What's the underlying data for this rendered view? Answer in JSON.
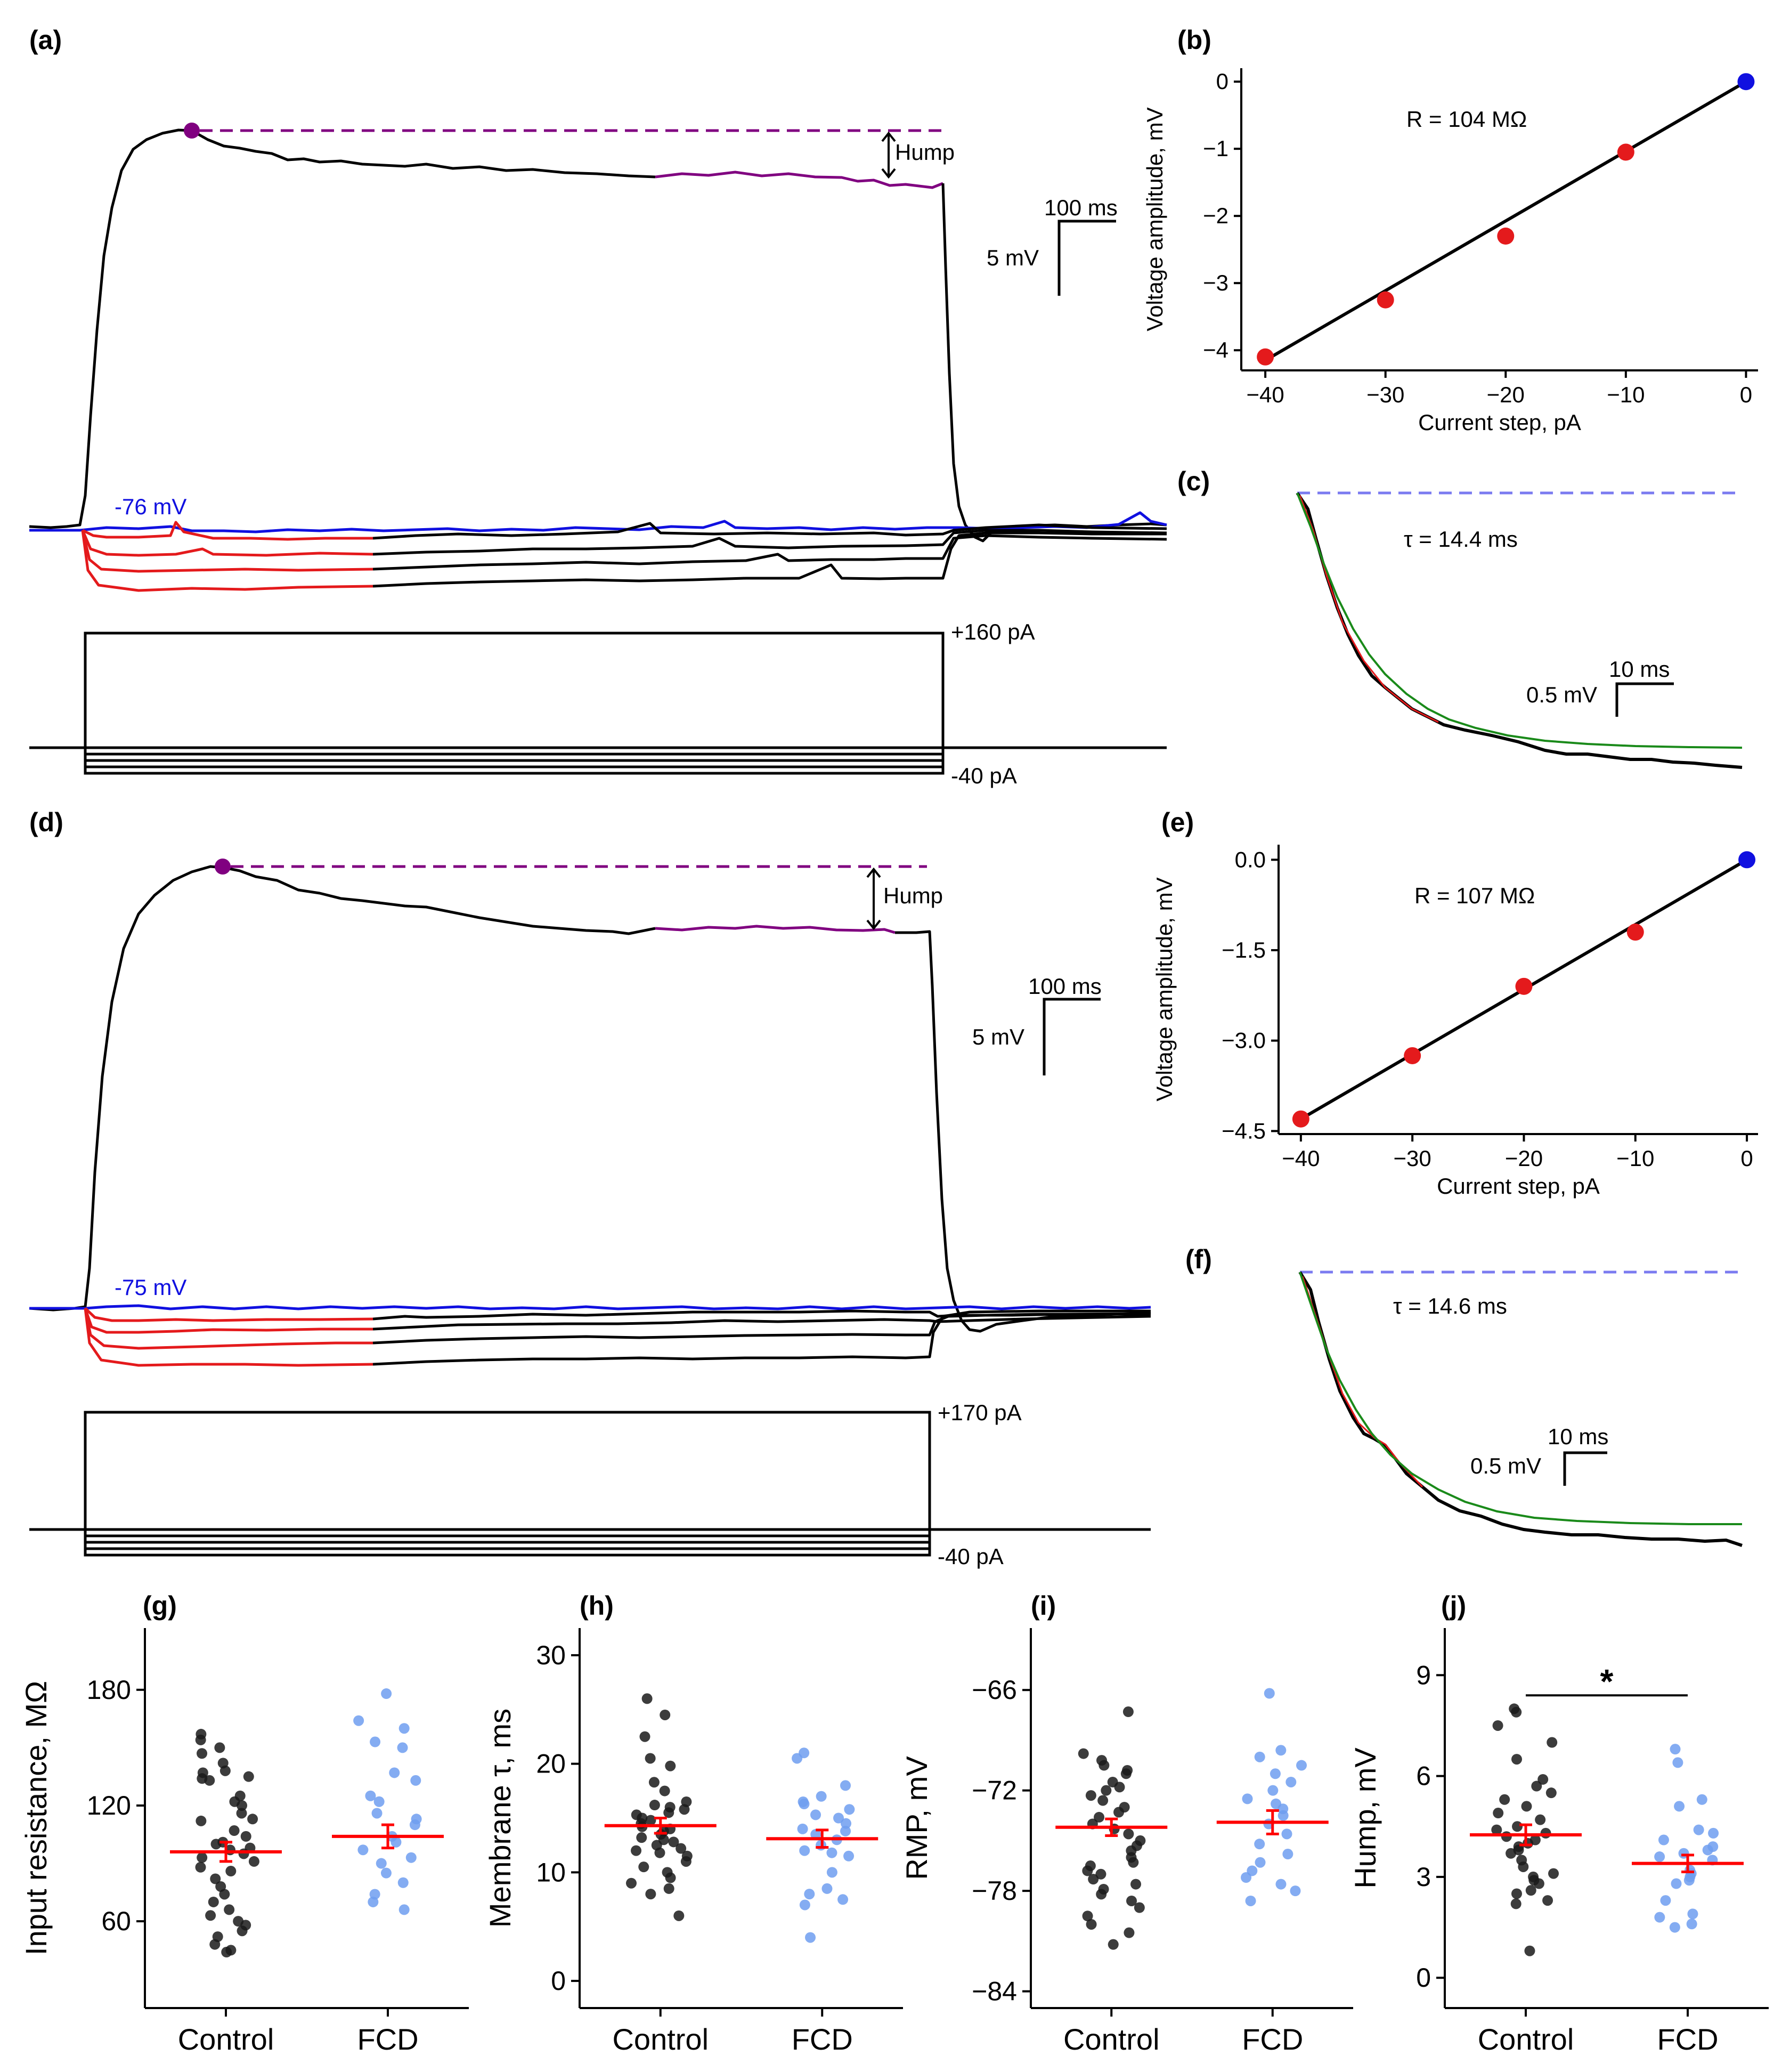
{
  "colors": {
    "trace": "#000000",
    "red_trace": "#e41a1c",
    "blue_trace": "#1010e0",
    "purple": "#800080",
    "fit": "#1a8a1a",
    "dashed_baseline": "#7b7bf0",
    "control_dot": "#1a1a1a",
    "fcd_dot": "#6f9df0",
    "mean_bar": "#ff0000"
  },
  "panel_labels": {
    "a": "(a)",
    "b": "(b)",
    "c": "(c)",
    "d": "(d)",
    "e": "(e)",
    "f": "(f)",
    "g": "(g)",
    "h": "(h)",
    "i": "(i)",
    "j": "(j)"
  },
  "chart_data": [
    {
      "id": "a",
      "type": "line",
      "title": "",
      "rmp_label": "-76 mV",
      "hump_label": "Hump",
      "scale_time": "100 ms",
      "scale_voltage": "5 mV",
      "step_top_label": "+160 pA",
      "step_bottom_label": "-40 pA",
      "current_steps_pA": [
        160,
        -10,
        -20,
        -30,
        -40
      ]
    },
    {
      "id": "b",
      "type": "scatter",
      "title": "R = 104 MΩ",
      "xlabel": "Current step, pA",
      "ylabel": "Voltage amplitude, mV",
      "xlim": [
        -42,
        1
      ],
      "ylim": [
        -4.3,
        0.2
      ],
      "xticks": [
        -40,
        -30,
        -20,
        -10,
        0
      ],
      "xtick_labels": [
        "−40",
        "−30",
        "−20",
        "−10",
        "0"
      ],
      "yticks": [
        0,
        -1,
        -2,
        -3,
        -4
      ],
      "ytick_labels": [
        "0",
        "−1",
        "−2",
        "−3",
        "−4"
      ],
      "x": [
        -40,
        -30,
        -20,
        -10,
        0
      ],
      "y": [
        -4.1,
        -3.25,
        -2.3,
        -1.05,
        0
      ],
      "fit_line": {
        "x": [
          -40,
          0
        ],
        "y": [
          -4.15,
          0
        ]
      }
    },
    {
      "id": "c",
      "type": "line",
      "tau_label": "τ = 14.4 ms",
      "scale_time": "10 ms",
      "scale_voltage": "0.5 mV"
    },
    {
      "id": "d",
      "type": "line",
      "rmp_label": "-75 mV",
      "hump_label": "Hump",
      "scale_time": "100 ms",
      "scale_voltage": "5 mV",
      "step_top_label": "+170 pA",
      "step_bottom_label": "-40 pA",
      "current_steps_pA": [
        170,
        -10,
        -20,
        -30,
        -40
      ]
    },
    {
      "id": "e",
      "type": "scatter",
      "title": "R = 107 MΩ",
      "xlabel": "Current step, pA",
      "ylabel": "Voltage amplitude, mV",
      "xlim": [
        -42,
        1
      ],
      "ylim": [
        -4.55,
        0.25
      ],
      "xticks": [
        -40,
        -30,
        -20,
        -10,
        0
      ],
      "xtick_labels": [
        "−40",
        "−30",
        "−20",
        "−10",
        "0"
      ],
      "yticks": [
        0,
        -1.5,
        -3,
        -4.5
      ],
      "ytick_labels": [
        "0.0",
        "−1.5",
        "−3.0",
        "−4.5"
      ],
      "x": [
        -40,
        -30,
        -20,
        -10,
        0
      ],
      "y": [
        -4.3,
        -3.25,
        -2.1,
        -1.2,
        0
      ],
      "fit_line": {
        "x": [
          -40,
          0
        ],
        "y": [
          -4.3,
          0
        ]
      }
    },
    {
      "id": "f",
      "type": "line",
      "tau_label": "τ = 14.6 ms",
      "scale_time": "10 ms",
      "scale_voltage": "0.5 mV"
    },
    {
      "id": "g",
      "type": "scatter",
      "ylabel": "Input resistance, MΩ",
      "categories": [
        "Control",
        "FCD"
      ],
      "ylim": [
        15,
        212
      ],
      "yticks": [
        60,
        120,
        180
      ],
      "ytick_labels": [
        "60",
        "120",
        "180"
      ],
      "series": [
        {
          "name": "Control",
          "mean": 96,
          "sem": 5,
          "values": [
            157,
            154,
            150,
            147,
            142,
            138,
            137,
            135,
            134,
            133,
            125,
            122,
            120,
            116,
            113,
            112,
            107,
            104,
            101,
            100,
            98,
            97,
            95,
            93,
            91,
            88,
            86,
            82,
            78,
            74,
            70,
            66,
            63,
            60,
            58,
            55,
            52,
            48,
            45,
            44
          ]
        },
        {
          "name": "FCD",
          "mean": 104,
          "sem": 6,
          "values": [
            178,
            164,
            160,
            153,
            150,
            137,
            133,
            125,
            122,
            116,
            113,
            110,
            104,
            101,
            97,
            93,
            90,
            85,
            80,
            74,
            70,
            66
          ]
        }
      ]
    },
    {
      "id": "h",
      "type": "scatter",
      "ylabel": "Membrane τ, ms",
      "categories": [
        "Control",
        "FCD"
      ],
      "ylim": [
        -2.5,
        32.5
      ],
      "yticks": [
        0,
        10,
        20,
        30
      ],
      "ytick_labels": [
        "0",
        "10",
        "20",
        "30"
      ],
      "series": [
        {
          "name": "Control",
          "mean": 14.3,
          "sem": 0.7,
          "values": [
            26,
            24.5,
            22.5,
            20.5,
            19.8,
            18.3,
            17.5,
            16.5,
            16.2,
            16,
            15.8,
            15.5,
            15.3,
            15,
            14.8,
            14.5,
            14.2,
            14,
            13.8,
            13.5,
            13.2,
            13,
            12.8,
            12.5,
            12.2,
            12,
            11.8,
            11.5,
            11,
            10.5,
            10,
            9.5,
            9,
            8.5,
            8,
            6
          ]
        },
        {
          "name": "FCD",
          "mean": 13.1,
          "sem": 0.8,
          "values": [
            21,
            20.5,
            18,
            17,
            16.5,
            16.3,
            15.8,
            15.3,
            15,
            14.5,
            14,
            13.8,
            13.5,
            13,
            12.5,
            12,
            11.8,
            11.5,
            10,
            8.5,
            8,
            7.5,
            7,
            4
          ]
        }
      ]
    },
    {
      "id": "i",
      "type": "scatter",
      "ylabel": "RMP, mV",
      "categories": [
        "Control",
        "FCD"
      ],
      "ylim": [
        -85,
        -62.3
      ],
      "yticks": [
        -66,
        -72,
        -78,
        -84
      ],
      "ytick_labels": [
        "−66",
        "−72",
        "−78",
        "−84"
      ],
      "series": [
        {
          "name": "Control",
          "mean": -74.2,
          "sem": 0.5,
          "values": [
            -67.3,
            -69.8,
            -70.2,
            -70.5,
            -70.8,
            -71,
            -71.5,
            -71.8,
            -72,
            -72.3,
            -72.6,
            -73,
            -73.3,
            -73.6,
            -74,
            -74.3,
            -74.6,
            -75,
            -75.3,
            -75.6,
            -76,
            -76.3,
            -76.5,
            -76.8,
            -77,
            -77.3,
            -77.6,
            -77.9,
            -78.2,
            -78.6,
            -79,
            -79.5,
            -80,
            -80.5,
            -81.2
          ]
        },
        {
          "name": "FCD",
          "mean": -73.9,
          "sem": 0.7,
          "values": [
            -66.2,
            -69.6,
            -70,
            -70.5,
            -71,
            -71.5,
            -72,
            -72.5,
            -72.8,
            -73.1,
            -73.5,
            -74,
            -74.6,
            -75.2,
            -75.8,
            -76.3,
            -76.8,
            -77.2,
            -77.6,
            -78,
            -78.6
          ]
        }
      ]
    },
    {
      "id": "j",
      "type": "scatter",
      "ylabel": "Hump, mV",
      "categories": [
        "Control",
        "FCD"
      ],
      "ylim": [
        -0.9,
        10.4
      ],
      "yticks": [
        0,
        3,
        6,
        9
      ],
      "ytick_labels": [
        "0",
        "3",
        "6",
        "9"
      ],
      "significance": "*",
      "series": [
        {
          "name": "Control",
          "mean": 4.25,
          "sem": 0.3,
          "values": [
            8,
            7.9,
            7.5,
            7,
            6.5,
            5.9,
            5.7,
            5.5,
            5.3,
            5.1,
            4.9,
            4.7,
            4.5,
            4.4,
            4.3,
            4.2,
            4.1,
            4,
            3.9,
            3.8,
            3.7,
            3.5,
            3.3,
            3.1,
            3,
            2.9,
            2.8,
            2.6,
            2.5,
            2.3,
            2.2,
            0.8
          ]
        },
        {
          "name": "FCD",
          "mean": 3.4,
          "sem": 0.25,
          "values": [
            6.8,
            6.4,
            5.3,
            5.1,
            4.4,
            4.3,
            4.1,
            3.9,
            3.8,
            3.7,
            3.6,
            3.5,
            3.2,
            3.1,
            3,
            2.9,
            2.8,
            2.3,
            1.9,
            1.8,
            1.6,
            1.5
          ]
        }
      ]
    }
  ]
}
